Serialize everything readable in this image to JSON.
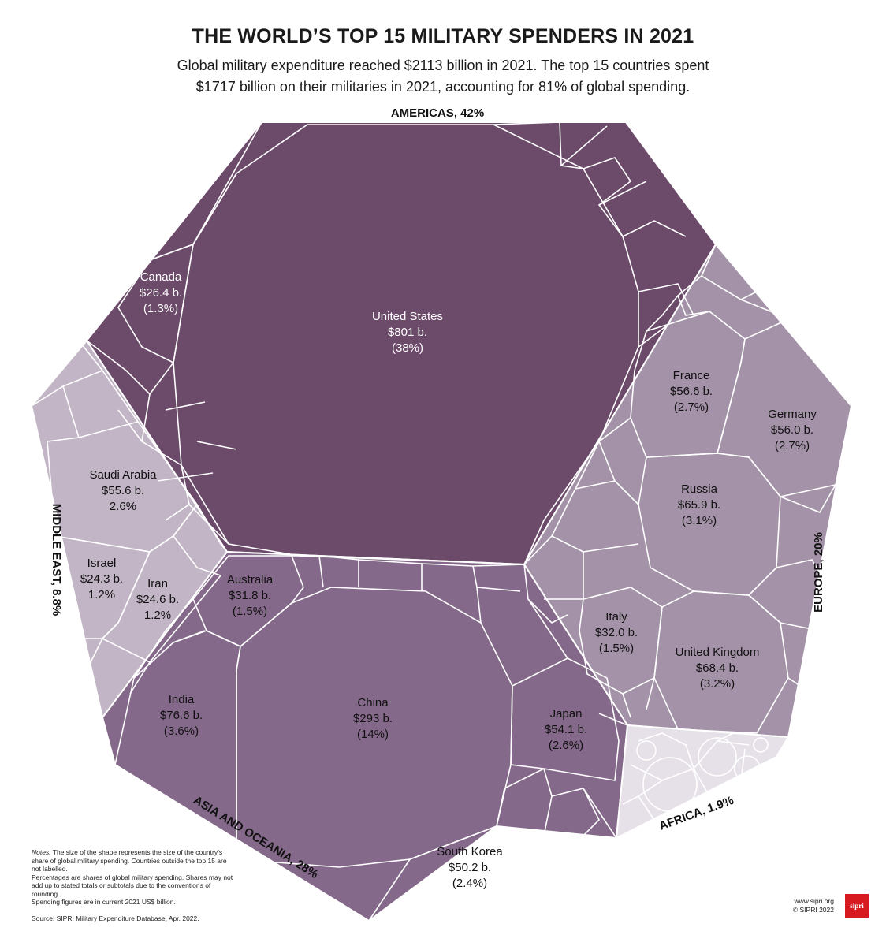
{
  "header": {
    "title": "THE WORLD’S TOP 15 MILITARY SPENDERS IN 2021",
    "subtitle_line1": "Global military expenditure reached $2113 billion in 2021. The top 15 countries spent",
    "subtitle_line2": "$1717 billion on their militaries in 2021, accounting for 81% of global spending."
  },
  "colors": {
    "americas": "#6c4a6a",
    "asia": "#85698a",
    "europe": "#a493a8",
    "middle_east": "#c2b5c6",
    "africa": "#e6e0e8",
    "border": "#ffffff"
  },
  "chart_data": {
    "type": "voronoi-treemap",
    "title": "THE WORLD’S TOP 15 MILITARY SPENDERS IN 2021",
    "unit": "US$ billion",
    "regions": [
      {
        "name": "AMERICAS, 42%",
        "share": 42
      },
      {
        "name": "EUROPE, 20%",
        "share": 20
      },
      {
        "name": "ASIA AND OCEANIA, 28%",
        "share": 28
      },
      {
        "name": "MIDDLE EAST, 8.8%",
        "share": 8.8
      },
      {
        "name": "AFRICA, 1.9%",
        "share": 1.9
      }
    ],
    "countries": [
      {
        "name": "United States",
        "value_label": "$801 b.",
        "share_label": "(38%)",
        "value": 801,
        "share": 38,
        "region": "Americas"
      },
      {
        "name": "Canada",
        "value_label": "$26.4 b.",
        "share_label": "(1.3%)",
        "value": 26.4,
        "share": 1.3,
        "region": "Americas"
      },
      {
        "name": "France",
        "value_label": "$56.6 b.",
        "share_label": "(2.7%)",
        "value": 56.6,
        "share": 2.7,
        "region": "Europe"
      },
      {
        "name": "Germany",
        "value_label": "$56.0 b.",
        "share_label": "(2.7%)",
        "value": 56.0,
        "share": 2.7,
        "region": "Europe"
      },
      {
        "name": "Russia",
        "value_label": "$65.9 b.",
        "share_label": "(3.1%)",
        "value": 65.9,
        "share": 3.1,
        "region": "Europe"
      },
      {
        "name": "Italy",
        "value_label": "$32.0 b.",
        "share_label": "(1.5%)",
        "value": 32.0,
        "share": 1.5,
        "region": "Europe"
      },
      {
        "name": "United Kingdom",
        "value_label": "$68.4 b.",
        "share_label": "(3.2%)",
        "value": 68.4,
        "share": 3.2,
        "region": "Europe"
      },
      {
        "name": "Saudi Arabia",
        "value_label": "$55.6 b.",
        "share_label": "2.6%",
        "value": 55.6,
        "share": 2.6,
        "region": "Middle East"
      },
      {
        "name": "Israel",
        "value_label": "$24.3 b.",
        "share_label": "1.2%",
        "value": 24.3,
        "share": 1.2,
        "region": "Middle East"
      },
      {
        "name": "Iran",
        "value_label": "$24.6 b.",
        "share_label": "1.2%",
        "value": 24.6,
        "share": 1.2,
        "region": "Middle East"
      },
      {
        "name": "Australia",
        "value_label": "$31.8 b.",
        "share_label": "(1.5%)",
        "value": 31.8,
        "share": 1.5,
        "region": "Asia and Oceania"
      },
      {
        "name": "India",
        "value_label": "$76.6 b.",
        "share_label": "(3.6%)",
        "value": 76.6,
        "share": 3.6,
        "region": "Asia and Oceania"
      },
      {
        "name": "China",
        "value_label": "$293 b.",
        "share_label": "(14%)",
        "value": 293,
        "share": 14,
        "region": "Asia and Oceania"
      },
      {
        "name": "Japan",
        "value_label": "$54.1 b.",
        "share_label": "(2.6%)",
        "value": 54.1,
        "share": 2.6,
        "region": "Asia and Oceania"
      },
      {
        "name": "South Korea",
        "value_label": "$50.2 b.",
        "share_label": "(2.4%)",
        "value": 50.2,
        "share": 2.4,
        "region": "Asia and Oceania"
      }
    ]
  },
  "footer": {
    "notes_label": "Notes:",
    "notes_text": " The size of the shape represents the size of the country’s share of global military spending. Countries outside the top 15 are not labelled.",
    "notes_line2": "Percentages are shares of global military spending. Shares may not add up to stated totals or subtotals due to the conventions of rounding.",
    "notes_line3": "Spending figures are in current 2021 US$ billion.",
    "source": "Source: SIPRI Military Expenditure Database, Apr. 2022.",
    "site": "www.sipri.org",
    "copyright": "© SIPRI 2022",
    "logo": "sipri"
  }
}
